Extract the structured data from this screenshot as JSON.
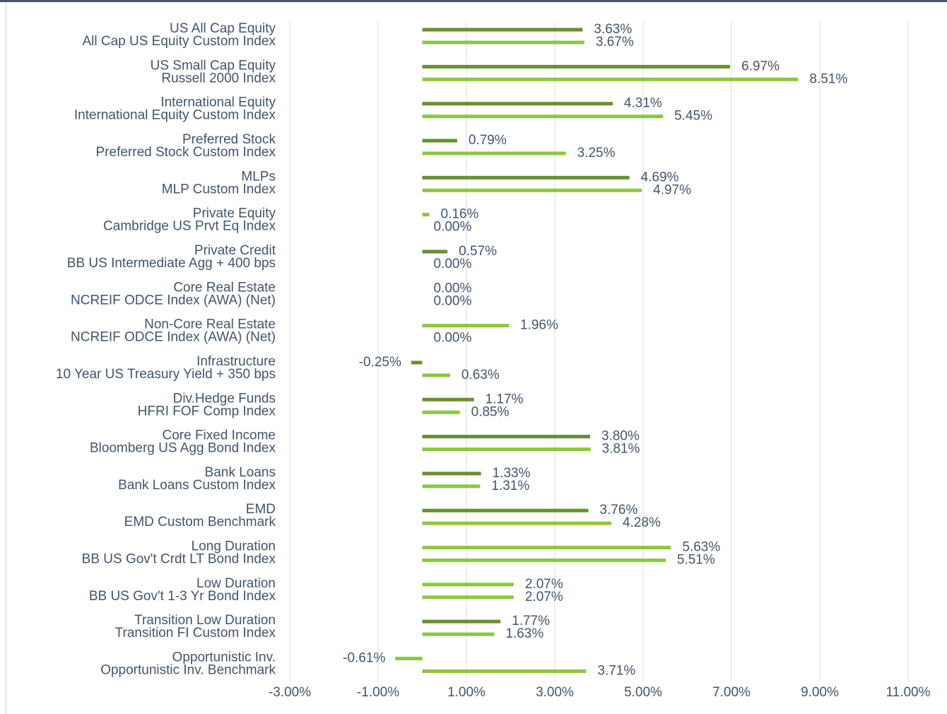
{
  "chart_data": {
    "type": "bar",
    "orientation": "horizontal",
    "categories": [
      "US All Cap Equity",
      "US Small Cap Equity",
      "International Equity",
      "Preferred Stock",
      "MLPs",
      "Private Equity",
      "Private Credit",
      "Core Real Estate",
      "Non-Core Real Estate",
      "Infrastructure",
      "Div.Hedge Funds",
      "Core Fixed Income",
      "Bank Loans",
      "EMD",
      "Long Duration",
      "Low Duration",
      "Transition Low Duration",
      "Opportunistic Inv."
    ],
    "benchmarks": [
      "All Cap US Equity Custom Index",
      "Russell 2000 Index",
      "International Equity Custom Index",
      "Preferred Stock Custom Index",
      "MLP Custom Index",
      "Cambridge US Prvt Eq Index",
      "BB US Intermediate Agg + 400 bps",
      "NCREIF ODCE Index (AWA) (Net)",
      "NCREIF ODCE Index (AWA) (Net)",
      "10 Year US Treasury Yield + 350 bps",
      "HFRI FOF Comp Index",
      "Bloomberg US Agg Bond Index",
      "Bank Loans Custom Index",
      "EMD Custom Benchmark",
      "BB US Gov't Crdt LT Bond Index",
      "BB US Gov't 1-3 Yr Bond Index",
      "Transition FI Custom Index",
      "Opportunistic Inv. Benchmark"
    ],
    "series": [
      {
        "color": "#6a8f2c",
        "colors": [
          "#6a8f2c",
          "#6a8f2c",
          "#6a8f2c",
          "#6a8f2c",
          "#6a8f2c",
          "#8dc63f",
          "#6a8f2c",
          "#6a8f2c",
          "#8dc63f",
          "#6a8f2c",
          "#6a8f2c",
          "#6a8f2c",
          "#6a8f2c",
          "#6a8f2c",
          "#8dc63f",
          "#8dc63f",
          "#6a8f2c",
          "#8dc63f"
        ],
        "values": [
          3.63,
          6.97,
          4.31,
          0.79,
          4.69,
          0.16,
          0.57,
          0,
          1.96,
          -0.25,
          1.17,
          3.8,
          1.33,
          3.76,
          5.63,
          2.07,
          1.77,
          -0.61
        ],
        "value_labels": [
          "3.63%",
          "6.97%",
          "4.31%",
          "0.79%",
          "4.69%",
          "0.16%",
          "0.57%",
          "0.00%",
          "1.96%",
          "-0.25%",
          "1.17%",
          "3.80%",
          "1.33%",
          "3.76%",
          "5.63%",
          "2.07%",
          "1.77%",
          "-0.61%"
        ]
      },
      {
        "color": "#8dc63f",
        "values": [
          3.67,
          8.51,
          5.45,
          3.25,
          4.97,
          0,
          0,
          0,
          0,
          0.63,
          0.85,
          3.81,
          1.31,
          4.28,
          5.51,
          2.07,
          1.63,
          3.71
        ],
        "value_labels": [
          "3.67%",
          "8.51%",
          "5.45%",
          "3.25%",
          "4.97%",
          "0.00%",
          "0.00%",
          "0.00%",
          "0.00%",
          "0.63%",
          "0.85%",
          "3.81%",
          "1.31%",
          "4.28%",
          "5.51%",
          "2.07%",
          "1.63%",
          "3.71%"
        ]
      }
    ],
    "xlim": [
      -3,
      11
    ],
    "xticks": [
      {
        "value": -3,
        "label": "-3.00%"
      },
      {
        "value": -1,
        "label": "-1.00%"
      },
      {
        "value": 1,
        "label": "1.00%"
      },
      {
        "value": 3,
        "label": "3.00%"
      },
      {
        "value": 5,
        "label": "5.00%"
      },
      {
        "value": 7,
        "label": "7.00%"
      },
      {
        "value": 9,
        "label": "9.00%"
      },
      {
        "value": 11,
        "label": "11.00%"
      }
    ],
    "grid": true
  }
}
